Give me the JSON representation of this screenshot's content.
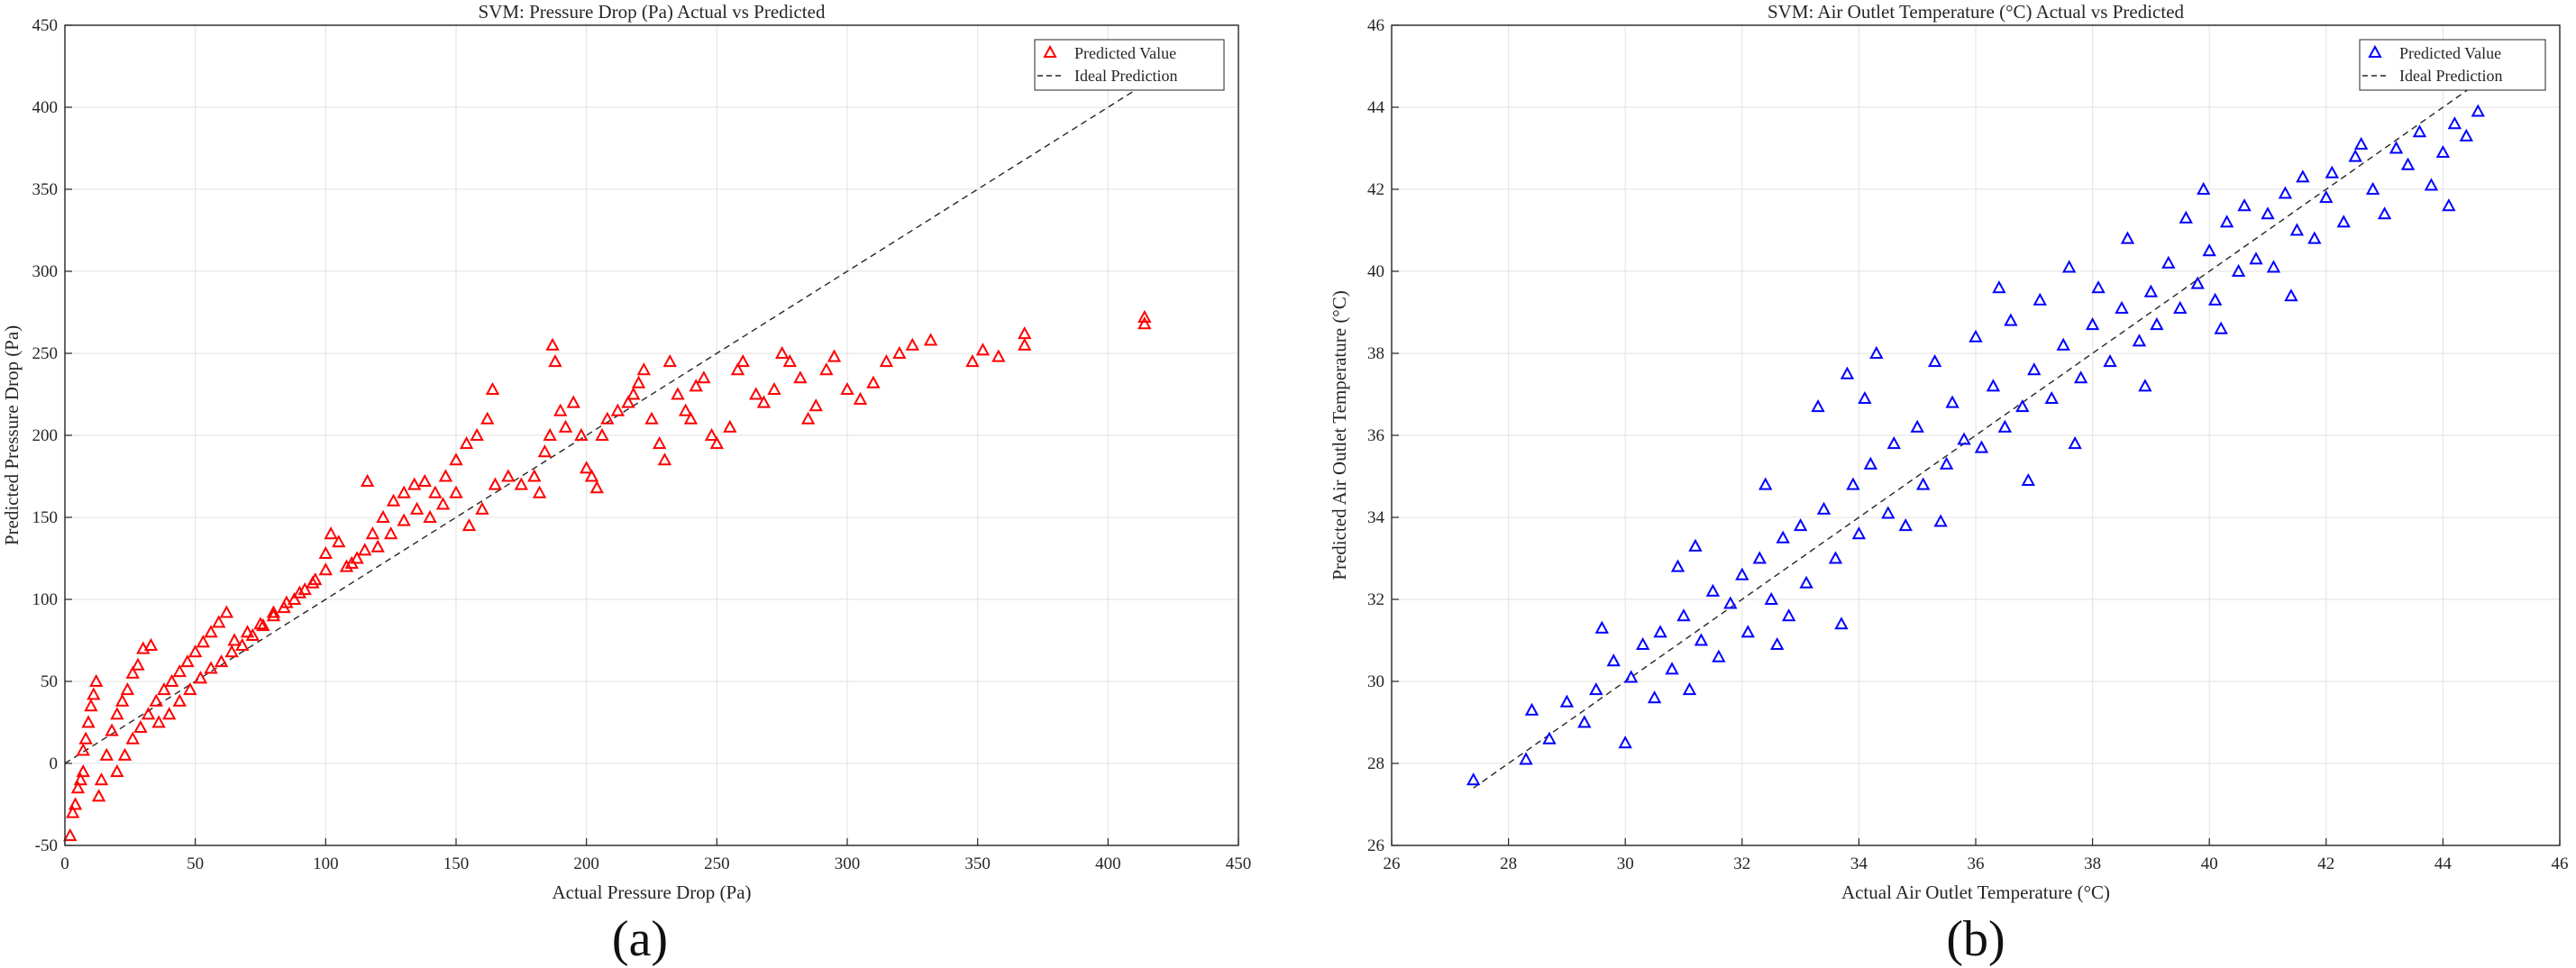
{
  "figure": {
    "panel_labels": [
      "(a)",
      "(b)"
    ]
  },
  "chart_data": [
    {
      "type": "scatter",
      "title": "SVM: Pressure Drop (Pa) Actual vs Predicted",
      "xlabel": "Actual Pressure Drop (Pa)",
      "ylabel": "Predicted Pressure Drop (Pa)",
      "xlim": [
        0,
        450
      ],
      "ylim": [
        -50,
        450
      ],
      "xticks": [
        0,
        50,
        100,
        150,
        200,
        250,
        300,
        350,
        400,
        450
      ],
      "yticks": [
        -50,
        0,
        50,
        100,
        150,
        200,
        250,
        300,
        350,
        400,
        450
      ],
      "grid": true,
      "legend_position": "top-right",
      "marker": "triangle-open",
      "color": "#ff0000",
      "series": [
        {
          "name": "Predicted Value",
          "kind": "scatter",
          "points": [
            [
              2,
              -44
            ],
            [
              3,
              -30
            ],
            [
              4,
              -25
            ],
            [
              5,
              -15
            ],
            [
              6,
              -10
            ],
            [
              7,
              -5
            ],
            [
              7,
              8
            ],
            [
              8,
              15
            ],
            [
              9,
              25
            ],
            [
              10,
              35
            ],
            [
              11,
              42
            ],
            [
              12,
              50
            ],
            [
              13,
              -20
            ],
            [
              14,
              -10
            ],
            [
              16,
              5
            ],
            [
              18,
              20
            ],
            [
              20,
              30
            ],
            [
              22,
              38
            ],
            [
              24,
              45
            ],
            [
              26,
              55
            ],
            [
              28,
              60
            ],
            [
              30,
              70
            ],
            [
              33,
              72
            ],
            [
              20,
              -5
            ],
            [
              23,
              5
            ],
            [
              26,
              15
            ],
            [
              29,
              22
            ],
            [
              32,
              30
            ],
            [
              35,
              38
            ],
            [
              38,
              45
            ],
            [
              41,
              50
            ],
            [
              44,
              56
            ],
            [
              47,
              62
            ],
            [
              50,
              68
            ],
            [
              53,
              74
            ],
            [
              56,
              80
            ],
            [
              59,
              86
            ],
            [
              62,
              92
            ],
            [
              36,
              25
            ],
            [
              40,
              30
            ],
            [
              44,
              38
            ],
            [
              48,
              45
            ],
            [
              52,
              52
            ],
            [
              56,
              58
            ],
            [
              60,
              62
            ],
            [
              64,
              68
            ],
            [
              68,
              72
            ],
            [
              72,
              78
            ],
            [
              76,
              84
            ],
            [
              80,
              90
            ],
            [
              84,
              95
            ],
            [
              88,
              100
            ],
            [
              92,
              106
            ],
            [
              96,
              112
            ],
            [
              100,
              118
            ],
            [
              65,
              75
            ],
            [
              70,
              80
            ],
            [
              75,
              85
            ],
            [
              80,
              92
            ],
            [
              85,
              98
            ],
            [
              90,
              104
            ],
            [
              95,
              110
            ],
            [
              100,
              128
            ],
            [
              102,
              140
            ],
            [
              105,
              135
            ],
            [
              108,
              120
            ],
            [
              112,
              125
            ],
            [
              115,
              130
            ],
            [
              118,
              140
            ],
            [
              122,
              150
            ],
            [
              126,
              160
            ],
            [
              130,
              165
            ],
            [
              134,
              170
            ],
            [
              138,
              172
            ],
            [
              142,
              165
            ],
            [
              146,
              175
            ],
            [
              150,
              185
            ],
            [
              154,
              195
            ],
            [
              158,
              200
            ],
            [
              162,
              210
            ],
            [
              164,
              228
            ],
            [
              110,
              122
            ],
            [
              116,
              172
            ],
            [
              120,
              132
            ],
            [
              125,
              140
            ],
            [
              130,
              148
            ],
            [
              135,
              155
            ],
            [
              140,
              150
            ],
            [
              145,
              158
            ],
            [
              150,
              165
            ],
            [
              155,
              145
            ],
            [
              160,
              155
            ],
            [
              165,
              170
            ],
            [
              170,
              175
            ],
            [
              175,
              170
            ],
            [
              180,
              175
            ],
            [
              182,
              165
            ],
            [
              184,
              190
            ],
            [
              186,
              200
            ],
            [
              187,
              255
            ],
            [
              188,
              245
            ],
            [
              190,
              215
            ],
            [
              192,
              205
            ],
            [
              195,
              220
            ],
            [
              198,
              200
            ],
            [
              200,
              180
            ],
            [
              202,
              175
            ],
            [
              204,
              168
            ],
            [
              206,
              200
            ],
            [
              208,
              210
            ],
            [
              212,
              215
            ],
            [
              216,
              220
            ],
            [
              218,
              225
            ],
            [
              220,
              232
            ],
            [
              222,
              240
            ],
            [
              225,
              210
            ],
            [
              228,
              195
            ],
            [
              230,
              185
            ],
            [
              232,
              245
            ],
            [
              235,
              225
            ],
            [
              238,
              215
            ],
            [
              240,
              210
            ],
            [
              242,
              230
            ],
            [
              245,
              235
            ],
            [
              248,
              200
            ],
            [
              250,
              195
            ],
            [
              255,
              205
            ],
            [
              258,
              240
            ],
            [
              260,
              245
            ],
            [
              265,
              225
            ],
            [
              268,
              220
            ],
            [
              272,
              228
            ],
            [
              275,
              250
            ],
            [
              278,
              245
            ],
            [
              282,
              235
            ],
            [
              285,
              210
            ],
            [
              288,
              218
            ],
            [
              292,
              240
            ],
            [
              295,
              248
            ],
            [
              300,
              228
            ],
            [
              305,
              222
            ],
            [
              310,
              232
            ],
            [
              315,
              245
            ],
            [
              320,
              250
            ],
            [
              325,
              255
            ],
            [
              332,
              258
            ],
            [
              348,
              245
            ],
            [
              352,
              252
            ],
            [
              358,
              248
            ],
            [
              368,
              255
            ],
            [
              368,
              262
            ],
            [
              414,
              268
            ],
            [
              414,
              272
            ]
          ]
        },
        {
          "name": "Ideal Prediction",
          "kind": "line",
          "x": [
            0,
            415
          ],
          "y": [
            0,
            415
          ]
        }
      ]
    },
    {
      "type": "scatter",
      "title": "SVM: Air Outlet Temperature (°C) Actual vs Predicted",
      "xlabel": "Actual Air Outlet Temperature (°C)",
      "ylabel": "Predicted Air Outlet Temperature (°C)",
      "xlim": [
        26,
        46
      ],
      "ylim": [
        26,
        46
      ],
      "xticks": [
        26,
        28,
        30,
        32,
        34,
        36,
        38,
        40,
        42,
        44,
        46
      ],
      "yticks": [
        26,
        28,
        30,
        32,
        34,
        36,
        38,
        40,
        42,
        44,
        46
      ],
      "grid": true,
      "legend_position": "top-right",
      "marker": "triangle-open",
      "color": "#0000ff",
      "series": [
        {
          "name": "Predicted Value",
          "kind": "scatter",
          "points": [
            [
              27.4,
              27.6
            ],
            [
              28.3,
              28.1
            ],
            [
              28.4,
              29.3
            ],
            [
              28.7,
              28.6
            ],
            [
              29.0,
              29.5
            ],
            [
              29.3,
              29.0
            ],
            [
              29.5,
              29.8
            ],
            [
              29.8,
              30.5
            ],
            [
              30.0,
              28.5
            ],
            [
              30.1,
              30.1
            ],
            [
              30.3,
              30.9
            ],
            [
              30.5,
              29.6
            ],
            [
              30.6,
              31.2
            ],
            [
              30.8,
              30.3
            ],
            [
              31.0,
              31.6
            ],
            [
              31.1,
              29.8
            ],
            [
              31.3,
              31.0
            ],
            [
              31.5,
              32.2
            ],
            [
              31.6,
              30.6
            ],
            [
              31.8,
              31.9
            ],
            [
              32.0,
              32.6
            ],
            [
              32.1,
              31.2
            ],
            [
              32.3,
              33.0
            ],
            [
              32.4,
              34.8
            ],
            [
              32.5,
              32.0
            ],
            [
              32.7,
              33.5
            ],
            [
              32.8,
              31.6
            ],
            [
              33.0,
              33.8
            ],
            [
              33.1,
              32.4
            ],
            [
              33.3,
              36.7
            ],
            [
              33.4,
              34.2
            ],
            [
              33.6,
              33.0
            ],
            [
              33.8,
              37.5
            ],
            [
              33.9,
              34.8
            ],
            [
              34.0,
              33.6
            ],
            [
              34.2,
              35.3
            ],
            [
              34.3,
              38.0
            ],
            [
              34.5,
              34.1
            ],
            [
              34.6,
              35.8
            ],
            [
              34.8,
              33.8
            ],
            [
              35.0,
              36.2
            ],
            [
              35.1,
              34.8
            ],
            [
              35.3,
              37.8
            ],
            [
              35.5,
              35.3
            ],
            [
              35.6,
              36.8
            ],
            [
              35.8,
              35.9
            ],
            [
              36.0,
              38.4
            ],
            [
              36.1,
              35.7
            ],
            [
              36.3,
              37.2
            ],
            [
              36.5,
              36.2
            ],
            [
              36.6,
              38.8
            ],
            [
              36.8,
              36.7
            ],
            [
              37.0,
              37.6
            ],
            [
              37.1,
              39.3
            ],
            [
              37.3,
              36.9
            ],
            [
              37.5,
              38.2
            ],
            [
              37.6,
              40.1
            ],
            [
              37.8,
              37.4
            ],
            [
              38.0,
              38.7
            ],
            [
              38.1,
              39.6
            ],
            [
              38.3,
              37.8
            ],
            [
              38.5,
              39.1
            ],
            [
              38.6,
              40.8
            ],
            [
              38.8,
              38.3
            ],
            [
              39.0,
              39.5
            ],
            [
              39.1,
              38.7
            ],
            [
              39.3,
              40.2
            ],
            [
              39.5,
              39.1
            ],
            [
              39.6,
              41.3
            ],
            [
              39.8,
              39.7
            ],
            [
              40.0,
              40.5
            ],
            [
              40.1,
              39.3
            ],
            [
              40.3,
              41.2
            ],
            [
              40.5,
              40.0
            ],
            [
              40.6,
              41.6
            ],
            [
              40.8,
              40.3
            ],
            [
              41.0,
              41.4
            ],
            [
              41.1,
              40.1
            ],
            [
              41.3,
              41.9
            ],
            [
              41.5,
              41.0
            ],
            [
              41.6,
              42.3
            ],
            [
              41.8,
              40.8
            ],
            [
              42.0,
              41.8
            ],
            [
              42.1,
              42.4
            ],
            [
              42.3,
              41.2
            ],
            [
              42.5,
              42.8
            ],
            [
              42.6,
              43.1
            ],
            [
              42.8,
              42.0
            ],
            [
              43.0,
              41.4
            ],
            [
              43.2,
              43.0
            ],
            [
              43.4,
              42.6
            ],
            [
              43.6,
              43.4
            ],
            [
              43.8,
              42.1
            ],
            [
              44.0,
              42.9
            ],
            [
              44.1,
              41.6
            ],
            [
              44.2,
              43.6
            ],
            [
              44.4,
              43.3
            ],
            [
              44.6,
              43.9
            ],
            [
              31.2,
              33.3
            ],
            [
              32.6,
              30.9
            ],
            [
              34.1,
              36.9
            ],
            [
              35.4,
              33.9
            ],
            [
              36.9,
              34.9
            ],
            [
              37.7,
              35.8
            ],
            [
              38.9,
              37.2
            ],
            [
              40.2,
              38.6
            ],
            [
              41.4,
              39.4
            ],
            [
              39.9,
              42.0
            ],
            [
              36.4,
              39.6
            ],
            [
              33.7,
              31.4
            ],
            [
              30.9,
              32.8
            ],
            [
              29.6,
              31.3
            ]
          ]
        },
        {
          "name": "Ideal Prediction",
          "kind": "line",
          "x": [
            27.4,
            44.8
          ],
          "y": [
            27.4,
            44.8
          ]
        }
      ]
    }
  ]
}
